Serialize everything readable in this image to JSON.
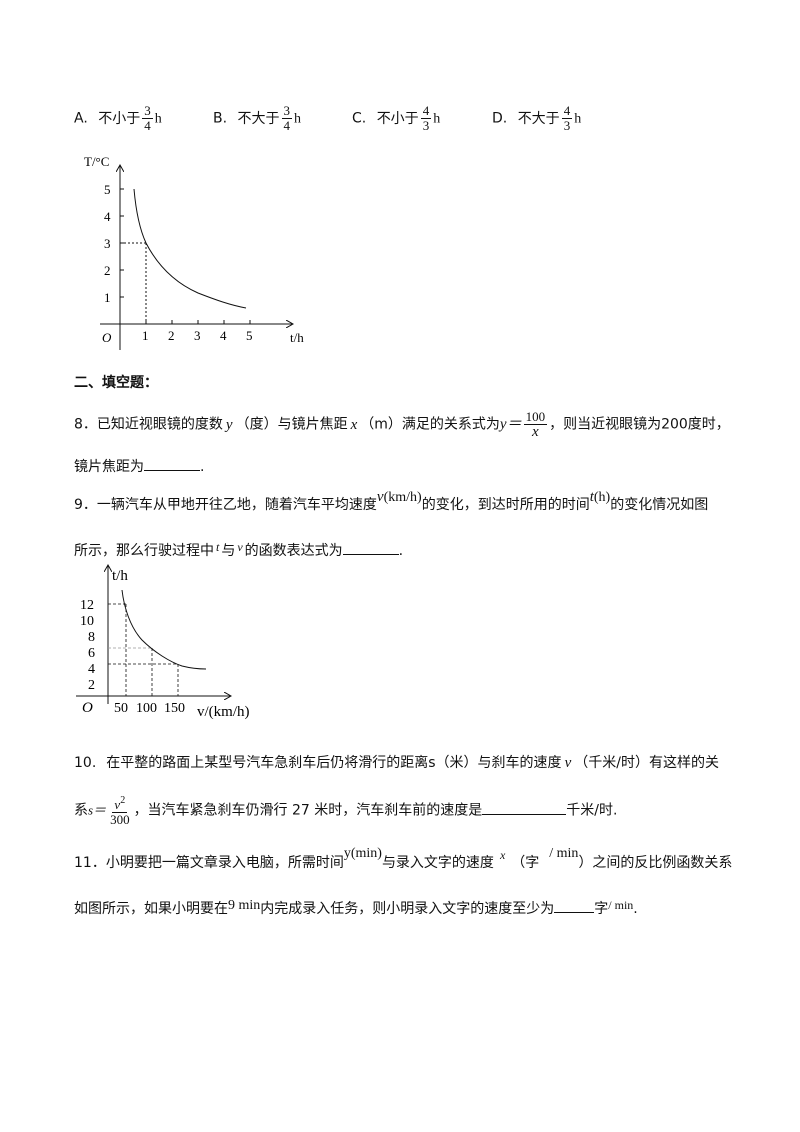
{
  "options": [
    {
      "letter": "A.",
      "text": "不小于",
      "num": "3",
      "den": "4",
      "unit": "h"
    },
    {
      "letter": "B.",
      "text": "不大于",
      "num": "3",
      "den": "4",
      "unit": "h"
    },
    {
      "letter": "C.",
      "text": "不小于",
      "num": "4",
      "den": "3",
      "unit": "h"
    },
    {
      "letter": "D.",
      "text": "不大于",
      "num": "4",
      "den": "3",
      "unit": "h"
    }
  ],
  "graph1": {
    "y_label": "T/°C",
    "x_label": "t/h",
    "origin": "O",
    "x_ticks": [
      "1",
      "2",
      "3",
      "4",
      "5"
    ],
    "y_ticks": [
      "1",
      "2",
      "3",
      "4",
      "5"
    ]
  },
  "section2": {
    "title": "二、填空题："
  },
  "q8": {
    "num": "8．",
    "t1": "已知近视眼镜的度数",
    "var_y": "y",
    "t2": "（度）与镜片焦距",
    "var_x": "x",
    "t3": "（m）满足的关系式为",
    "eq_lhs": "y＝",
    "frac_num": "100",
    "frac_den": "x",
    "t4": "，则当近视眼镜为200度时，",
    "t5": "镜片焦距为",
    "t6": "."
  },
  "q9": {
    "num": "9．",
    "t1": "一辆汽车从甲地开往乙地，随着汽车平均速度",
    "v_expr": "v",
    "v_unit": "(km/h)",
    "t2": "的变化，到达时所用的时间",
    "t_expr": "t",
    "t_unit": "(h)",
    "t3": "的变化情况如图",
    "t4": "所示，那么行驶过程中",
    "var_t": "t",
    "t5": "与",
    "var_v": "v",
    "t6": "的函数表达式为",
    "t7": "."
  },
  "graph2": {
    "y_label": "t/h",
    "x_label": "v/(km/h)",
    "origin": "O",
    "x_ticks": [
      "50",
      "100",
      "150"
    ],
    "y_ticks": [
      "2",
      "4",
      "6",
      "8",
      "10",
      "12"
    ]
  },
  "q10": {
    "num": "10.",
    "t1": "在平整的路面上某型号汽车急刹车后仍将滑行的距离s（米）与刹车的速度",
    "var_v": "v",
    "t2": "（千米/时）有这样的关",
    "t3": "系",
    "eq_lhs": "s＝",
    "frac_num": "v",
    "frac_sup": "2",
    "frac_den": "300",
    "t4": "，当汽车紧急刹车仍滑行 27 米时，汽车刹车前的速度是",
    "t5": "千米/时."
  },
  "q11": {
    "num": "11．",
    "t1": "小明要把一篇文章录入电脑，所需时间",
    "y_expr": "y(min)",
    "t2": "与录入文字的速度",
    "var_x": "x",
    "t3": "（字",
    "per_min": "/ min",
    "t4": "）之间的反比例函数关系",
    "t5": "如图所示，如果小明要在",
    "nine_min": "9 min",
    "t6": "内完成录入任务，则小明录入文字的速度至少为",
    "t7": "字",
    "per_min2": "/ min",
    "t8": "."
  }
}
